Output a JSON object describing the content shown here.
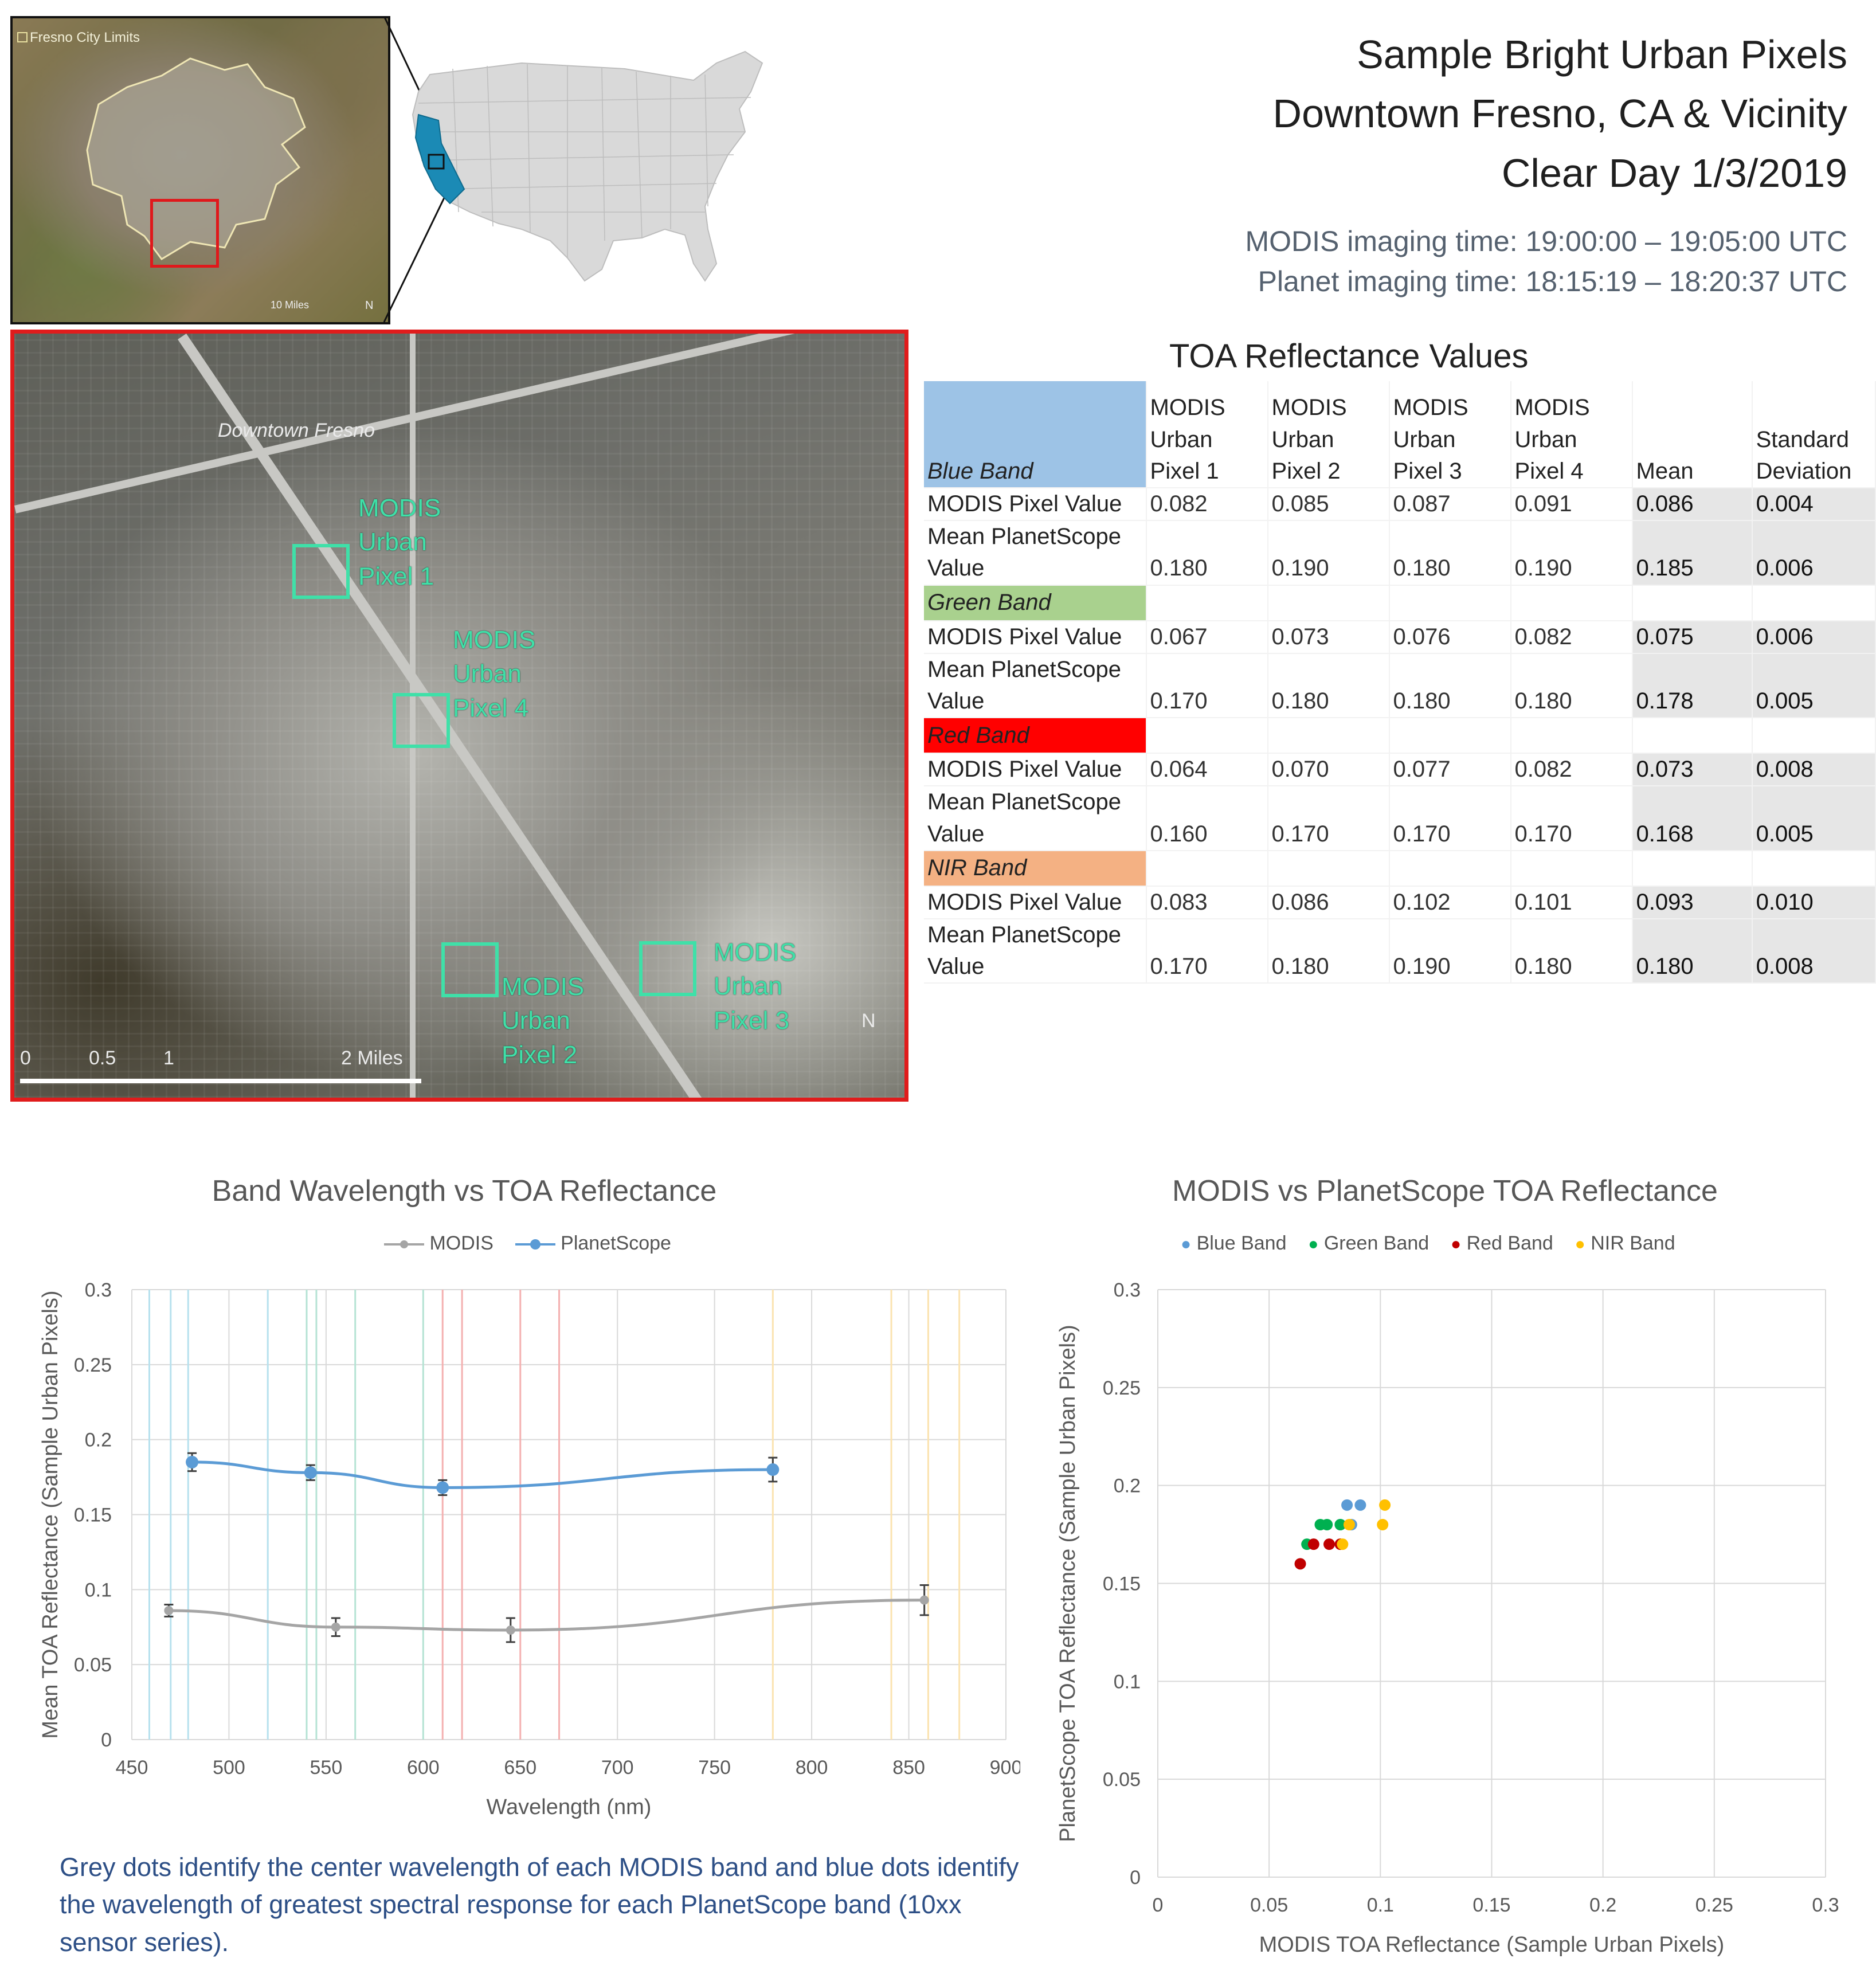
{
  "header": {
    "title_lines": [
      "Sample Bright Urban Pixels",
      "Downtown Fresno, CA & Vicinity",
      "Clear Day 1/3/2019"
    ],
    "modis_time": "MODIS imaging time: 19:00:00 – 19:05:00 UTC",
    "planet_time": "Planet imaging time: 18:15:19 – 18:20:37 UTC"
  },
  "inset": {
    "city_limits_label": "Fresno City Limits",
    "scale_label": "10 Miles",
    "north_label": "N"
  },
  "main_image": {
    "place_label": "Downtown Fresno",
    "pixel_labels": [
      "MODIS Urban Pixel 1",
      "MODIS Urban Pixel 4",
      "MODIS Urban Pixel 2",
      "MODIS Urban Pixel 3"
    ],
    "scale_ticks": [
      "0",
      "0.5",
      "1",
      "2 Miles"
    ],
    "north_label": "N"
  },
  "colors": {
    "blue_band": "#9dc3e6",
    "green_band": "#a9d18e",
    "red_band": "#ff0000",
    "nir_band": "#f4b183",
    "modis_line": "#a5a5a5",
    "planet_line": "#5b9bd5",
    "scatter_blue": "#5b9bd5",
    "scatter_green": "#00b050",
    "scatter_red": "#c00000",
    "scatter_nir": "#ffc000",
    "caption": "#2d4f86"
  },
  "table": {
    "title": "TOA Reflectance Values",
    "columns": [
      "MODIS Urban Pixel 1",
      "MODIS Urban Pixel 2",
      "MODIS Urban Pixel 3",
      "MODIS Urban Pixel 4",
      "Mean",
      "Standard Deviation"
    ],
    "bands": [
      {
        "name": "Blue Band",
        "rows": [
          {
            "label": "MODIS Pixel Value",
            "values": [
              "0.082",
              "0.085",
              "0.087",
              "0.091"
            ],
            "mean": "0.086",
            "sd": "0.004"
          },
          {
            "label": "Mean PlanetScope Value",
            "values": [
              "0.180",
              "0.190",
              "0.180",
              "0.190"
            ],
            "mean": "0.185",
            "sd": "0.006"
          }
        ]
      },
      {
        "name": "Green Band",
        "rows": [
          {
            "label": "MODIS Pixel Value",
            "values": [
              "0.067",
              "0.073",
              "0.076",
              "0.082"
            ],
            "mean": "0.075",
            "sd": "0.006"
          },
          {
            "label": "Mean PlanetScope Value",
            "values": [
              "0.170",
              "0.180",
              "0.180",
              "0.180"
            ],
            "mean": "0.178",
            "sd": "0.005"
          }
        ]
      },
      {
        "name": "Red Band",
        "rows": [
          {
            "label": "MODIS Pixel Value",
            "values": [
              "0.064",
              "0.070",
              "0.077",
              "0.082"
            ],
            "mean": "0.073",
            "sd": "0.008"
          },
          {
            "label": "Mean PlanetScope Value",
            "values": [
              "0.160",
              "0.170",
              "0.170",
              "0.170"
            ],
            "mean": "0.168",
            "sd": "0.005"
          }
        ]
      },
      {
        "name": "NIR Band",
        "rows": [
          {
            "label": "MODIS Pixel Value",
            "values": [
              "0.083",
              "0.086",
              "0.102",
              "0.101"
            ],
            "mean": "0.093",
            "sd": "0.010"
          },
          {
            "label": "Mean PlanetScope Value",
            "values": [
              "0.170",
              "0.180",
              "0.190",
              "0.180"
            ],
            "mean": "0.180",
            "sd": "0.008"
          }
        ]
      }
    ]
  },
  "chart_data": [
    {
      "type": "line",
      "title": "Band Wavelength vs TOA Reflectance",
      "xlabel": "Wavelength (nm)",
      "ylabel": "Mean TOA Reflectance (Sample Urban Pixels)",
      "xlim": [
        450,
        900
      ],
      "ylim": [
        0,
        0.3
      ],
      "x_ticks": [
        "450",
        "500",
        "550",
        "600",
        "650",
        "700",
        "750",
        "800",
        "850",
        "900"
      ],
      "y_ticks": [
        "0",
        "0.05",
        "0.1",
        "0.15",
        "0.2",
        "0.25",
        "0.3"
      ],
      "legend": "top",
      "series": [
        {
          "name": "MODIS",
          "x": [
            469,
            555,
            645,
            858
          ],
          "y": [
            0.086,
            0.075,
            0.073,
            0.093
          ],
          "error": [
            0.004,
            0.006,
            0.008,
            0.01
          ]
        },
        {
          "name": "PlanetScope",
          "x": [
            481,
            542,
            610,
            780
          ],
          "y": [
            0.185,
            0.178,
            0.168,
            0.18
          ],
          "error": [
            0.006,
            0.005,
            0.005,
            0.008
          ]
        }
      ],
      "vertical_lines": [
        {
          "x": 459,
          "band": "blue"
        },
        {
          "x": 479,
          "band": "blue"
        },
        {
          "x": 470,
          "band": "blue"
        },
        {
          "x": 520,
          "band": "blue"
        },
        {
          "x": 545,
          "band": "green"
        },
        {
          "x": 565,
          "band": "green"
        },
        {
          "x": 540,
          "band": "green"
        },
        {
          "x": 600,
          "band": "green"
        },
        {
          "x": 620,
          "band": "red"
        },
        {
          "x": 670,
          "band": "red"
        },
        {
          "x": 610,
          "band": "red"
        },
        {
          "x": 650,
          "band": "red"
        },
        {
          "x": 841,
          "band": "nir"
        },
        {
          "x": 876,
          "band": "nir"
        },
        {
          "x": 780,
          "band": "nir"
        },
        {
          "x": 860,
          "band": "nir"
        }
      ],
      "grid": true
    },
    {
      "type": "scatter",
      "title": "MODIS vs PlanetScope TOA Reflectance",
      "xlabel": "MODIS TOA Reflectance (Sample Urban Pixels)",
      "ylabel": "PlanetScope TOA Reflectance (Sample Urban Pixels)",
      "xlim": [
        0,
        0.3
      ],
      "ylim": [
        0,
        0.3
      ],
      "x_ticks": [
        "0",
        "0.05",
        "0.1",
        "0.15",
        "0.2",
        "0.25",
        "0.3"
      ],
      "y_ticks": [
        "0",
        "0.05",
        "0.1",
        "0.15",
        "0.2",
        "0.25",
        "0.3"
      ],
      "legend": "top",
      "series": [
        {
          "name": "Blue Band",
          "x": [
            0.082,
            0.085,
            0.087,
            0.091
          ],
          "y": [
            0.18,
            0.19,
            0.18,
            0.19
          ]
        },
        {
          "name": "Green Band",
          "x": [
            0.067,
            0.073,
            0.076,
            0.082
          ],
          "y": [
            0.17,
            0.18,
            0.18,
            0.18
          ]
        },
        {
          "name": "Red Band",
          "x": [
            0.064,
            0.07,
            0.077,
            0.082
          ],
          "y": [
            0.16,
            0.17,
            0.17,
            0.17
          ]
        },
        {
          "name": "NIR Band",
          "x": [
            0.083,
            0.086,
            0.102,
            0.101
          ],
          "y": [
            0.17,
            0.18,
            0.19,
            0.18
          ]
        }
      ],
      "grid": true
    }
  ],
  "caption": "Grey dots identify the center wavelength of each MODIS band and blue dots identify the wavelength of greatest spectral response for each PlanetScope band (10xx sensor series)."
}
